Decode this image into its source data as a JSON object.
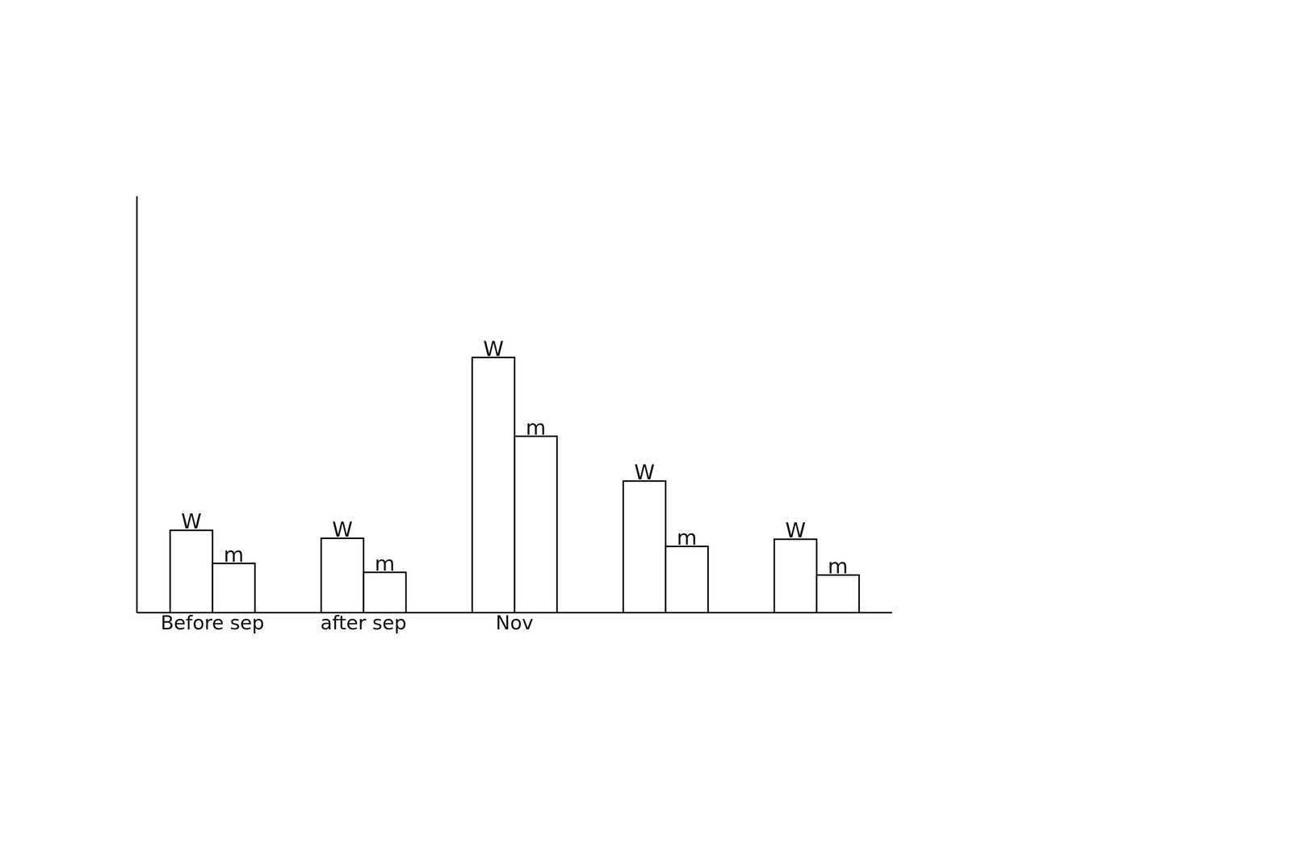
{
  "chart_data": {
    "type": "bar",
    "categories": [
      "Before sep",
      "after sep",
      "Nov",
      null,
      null
    ],
    "series": [
      {
        "name": "W",
        "color": "#ffffff",
        "values": [
          92,
          83,
          285,
          147,
          82
        ]
      },
      {
        "name": "m",
        "color": "#ffffff",
        "values": [
          55,
          45,
          197,
          74,
          42
        ]
      }
    ],
    "ylim": [
      0,
      465
    ],
    "tick_labels": "x",
    "grid": false
  }
}
